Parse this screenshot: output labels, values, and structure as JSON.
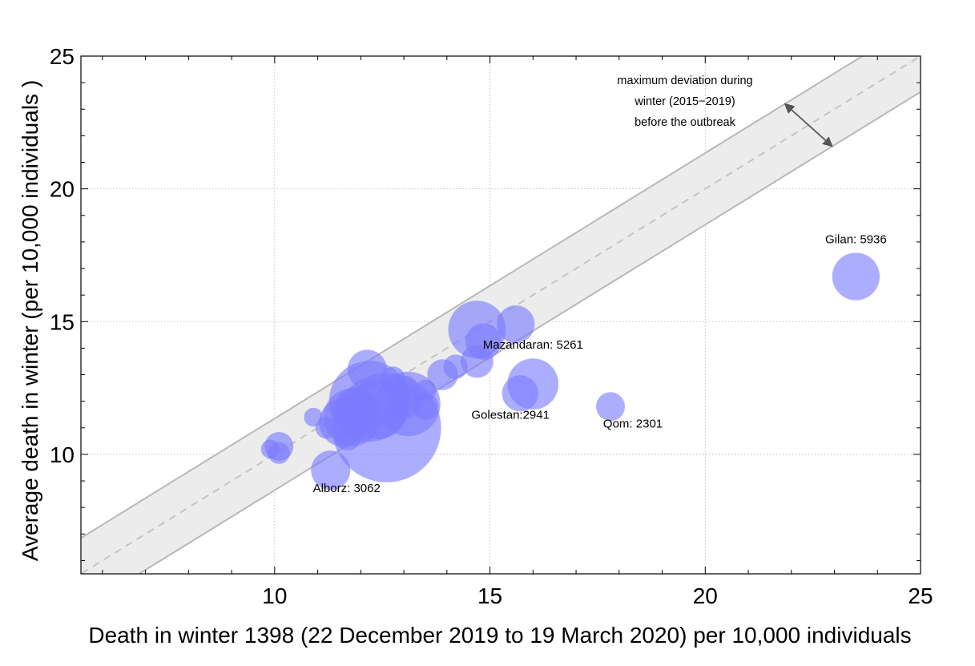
{
  "chart_data": {
    "type": "scatter",
    "title": "",
    "xlabel": "Death in winter 1398 (22 December 2019 to 19 March 2020) per 10,000 individuals",
    "ylabel": "Average death in winter (per 10,000 individuals )",
    "xlim": [
      5.5,
      25
    ],
    "ylim": [
      5.5,
      25
    ],
    "xticks": [
      "10",
      "15",
      "20",
      "25"
    ],
    "yticks": [
      "10",
      "15",
      "20",
      "25"
    ],
    "grid": true,
    "colors": {
      "bubble": "#7b7bff",
      "band_fill": "#ececec",
      "band_edge": "#b8b8b8",
      "diagonal": "#c4c4c4",
      "grid": "#b5b5b5",
      "arrow": "#555555"
    },
    "band_half_width": 1.35,
    "deviation_label": [
      "maximum deviation during",
      "winter (2015−2019)",
      "before the outbreak"
    ],
    "points": [
      {
        "x": 12.6,
        "y": 11.0,
        "size": 1.0,
        "label": ""
      },
      {
        "x": 12.2,
        "y": 12.0,
        "size": 0.55,
        "label": ""
      },
      {
        "x": 13.1,
        "y": 11.9,
        "size": 0.35,
        "label": ""
      },
      {
        "x": 12.4,
        "y": 11.7,
        "size": 0.3,
        "label": ""
      },
      {
        "x": 11.8,
        "y": 11.4,
        "size": 0.28,
        "label": ""
      },
      {
        "x": 11.6,
        "y": 11.2,
        "size": 0.2,
        "label": ""
      },
      {
        "x": 11.9,
        "y": 11.7,
        "size": 0.17,
        "label": ""
      },
      {
        "x": 12.15,
        "y": 13.2,
        "size": 0.13,
        "label": ""
      },
      {
        "x": 14.7,
        "y": 14.7,
        "size": 0.28,
        "label": ""
      },
      {
        "x": 15.6,
        "y": 14.9,
        "size": 0.12,
        "label": ""
      },
      {
        "x": 14.85,
        "y": 14.25,
        "size": 0.11,
        "label": ""
      },
      {
        "x": 14.7,
        "y": 13.5,
        "size": 0.09,
        "label": ""
      },
      {
        "x": 13.9,
        "y": 13.0,
        "size": 0.08,
        "label": ""
      },
      {
        "x": 14.2,
        "y": 13.3,
        "size": 0.05,
        "label": ""
      },
      {
        "x": 13.0,
        "y": 12.0,
        "size": 0.1,
        "label": ""
      },
      {
        "x": 13.5,
        "y": 11.8,
        "size": 0.06,
        "label": ""
      },
      {
        "x": 13.5,
        "y": 12.4,
        "size": 0.04,
        "label": ""
      },
      {
        "x": 13.05,
        "y": 12.5,
        "size": 0.05,
        "label": ""
      },
      {
        "x": 12.75,
        "y": 12.85,
        "size": 0.05,
        "label": ""
      },
      {
        "x": 11.7,
        "y": 10.65,
        "size": 0.06,
        "label": ""
      },
      {
        "x": 11.2,
        "y": 11.0,
        "size": 0.04,
        "label": ""
      },
      {
        "x": 10.9,
        "y": 11.4,
        "size": 0.03,
        "label": ""
      },
      {
        "x": 10.1,
        "y": 10.3,
        "size": 0.07,
        "label": ""
      },
      {
        "x": 10.1,
        "y": 10.05,
        "size": 0.04,
        "label": ""
      },
      {
        "x": 9.9,
        "y": 10.2,
        "size": 0.03,
        "label": ""
      },
      {
        "x": 15.7,
        "y": 12.3,
        "size": 0.11,
        "label": "Golestan:2941"
      },
      {
        "x": 16.0,
        "y": 12.65,
        "size": 0.22,
        "label": "Mazandaran: 5261"
      },
      {
        "x": 11.3,
        "y": 9.4,
        "size": 0.13,
        "label": "Alborz: 3062"
      },
      {
        "x": 17.8,
        "y": 11.8,
        "size": 0.07,
        "label": "Qom: 2301"
      },
      {
        "x": 23.5,
        "y": 16.7,
        "size": 0.19,
        "label": "Gilan: 5936"
      }
    ]
  }
}
